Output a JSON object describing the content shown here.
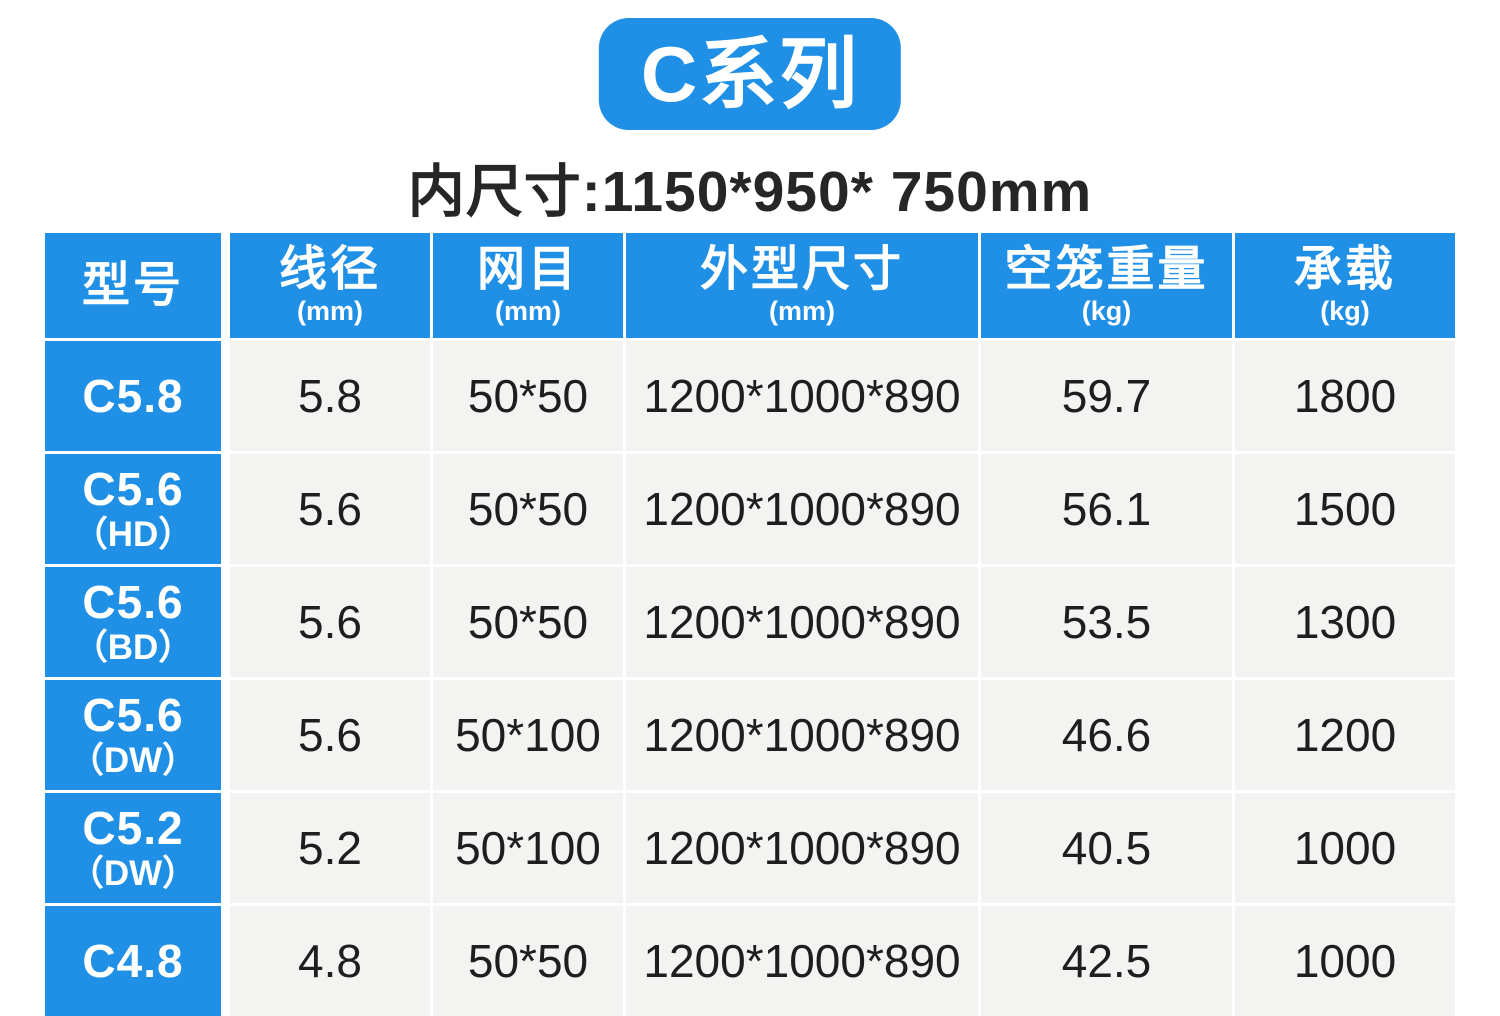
{
  "title": "C系列",
  "subtitle": "内尺寸:1150*950* 750mm",
  "colors": {
    "accent_blue": "#2090E6",
    "cell_gray": "#F3F3F1",
    "text_dark": "#1E1E1E",
    "text_white": "#FFFFFF"
  },
  "table": {
    "headers": [
      {
        "label": "型号",
        "unit": ""
      },
      {
        "label": "线径",
        "unit": "(mm)"
      },
      {
        "label": "网目",
        "unit": "(mm)"
      },
      {
        "label": "外型尺寸",
        "unit": "(mm)"
      },
      {
        "label": "空笼重量",
        "unit": "(kg)"
      },
      {
        "label": "承载",
        "unit": "(kg)"
      }
    ],
    "rows": [
      {
        "model": "C5.8",
        "variant": "",
        "wire_diameter": "5.8",
        "mesh": "50*50",
        "outer_size": "1200*1000*890",
        "empty_weight": "59.7",
        "load": "1800"
      },
      {
        "model": "C5.6",
        "variant": "（HD）",
        "wire_diameter": "5.6",
        "mesh": "50*50",
        "outer_size": "1200*1000*890",
        "empty_weight": "56.1",
        "load": "1500"
      },
      {
        "model": "C5.6",
        "variant": "（BD）",
        "wire_diameter": "5.6",
        "mesh": "50*50",
        "outer_size": "1200*1000*890",
        "empty_weight": "53.5",
        "load": "1300"
      },
      {
        "model": "C5.6",
        "variant": "（DW）",
        "wire_diameter": "5.6",
        "mesh": "50*100",
        "outer_size": "1200*1000*890",
        "empty_weight": "46.6",
        "load": "1200"
      },
      {
        "model": "C5.2",
        "variant": "（DW）",
        "wire_diameter": "5.2",
        "mesh": "50*100",
        "outer_size": "1200*1000*890",
        "empty_weight": "40.5",
        "load": "1000"
      },
      {
        "model": "C4.8",
        "variant": "",
        "wire_diameter": "4.8",
        "mesh": "50*50",
        "outer_size": "1200*1000*890",
        "empty_weight": "42.5",
        "load": "1000"
      }
    ]
  }
}
